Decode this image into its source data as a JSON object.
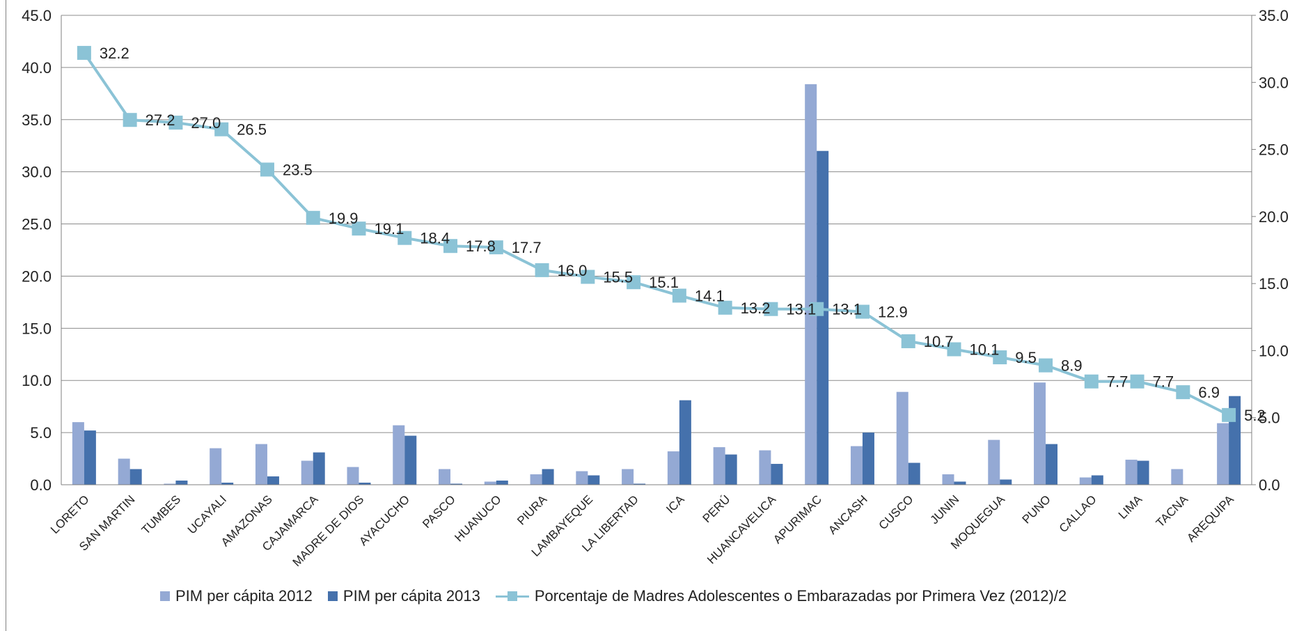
{
  "colors": {
    "bar2012": "#94A9D4",
    "bar2013": "#4571AC",
    "line": "#8BC3D6",
    "grid": "#8c8c8c",
    "axis": "#808080",
    "text": "#222222"
  },
  "chart_data": {
    "type": "bar",
    "categories": [
      "LORETO",
      "SAN MARTIN",
      "TUMBES",
      "UCAYALI",
      "AMAZONAS",
      "CAJAMARCA",
      "MADRE DE DIOS",
      "AYACUCHO",
      "PASCO",
      "HUANUCO",
      "PIURA",
      "LAMBAYEQUE",
      "LA LIBERTAD",
      "ICA",
      "PERÚ",
      "HUANCAVELICA",
      "APURIMAC",
      "ANCASH",
      "CUSCO",
      "JUNIN",
      "MOQUEGUA",
      "PUNO",
      "CALLAO",
      "LIMA",
      "TACNA",
      "AREQUIPA"
    ],
    "series": [
      {
        "name": "PIM per cápita 2012",
        "type": "bar",
        "axis": "left",
        "values": [
          6.0,
          2.5,
          0.1,
          3.5,
          3.9,
          2.3,
          1.7,
          5.7,
          1.5,
          0.3,
          1.0,
          1.3,
          1.5,
          3.2,
          3.6,
          3.3,
          38.4,
          3.7,
          8.9,
          1.0,
          4.3,
          9.8,
          0.7,
          2.4,
          1.5,
          5.9
        ]
      },
      {
        "name": "PIM per cápita 2013",
        "type": "bar",
        "axis": "left",
        "values": [
          5.2,
          1.5,
          0.4,
          0.2,
          0.8,
          3.1,
          0.2,
          4.7,
          0.1,
          0.4,
          1.5,
          0.9,
          0.1,
          8.1,
          2.9,
          2.0,
          32.0,
          5.0,
          2.1,
          0.3,
          0.5,
          3.9,
          0.9,
          2.3,
          0.0,
          8.5
        ]
      },
      {
        "name": "Porcentaje de Madres Adolescentes o Embarazadas por Primera Vez  (2012)/2",
        "type": "line",
        "axis": "right",
        "values": [
          32.2,
          27.2,
          27.0,
          26.5,
          23.5,
          19.9,
          19.1,
          18.4,
          17.8,
          17.7,
          16.0,
          15.5,
          15.1,
          14.1,
          13.2,
          13.1,
          13.1,
          12.9,
          10.7,
          10.1,
          9.5,
          8.9,
          7.7,
          7.7,
          6.9,
          5.2
        ]
      }
    ],
    "line_labels": [
      "32.2",
      "27.2",
      "27.0",
      "26.5",
      "23.5",
      "19.9",
      "19.1",
      "18.4",
      "17.8",
      "17.7",
      "16.0",
      "15.5",
      "15.1",
      "14.1",
      "13.2",
      "13.1",
      "13.1",
      "12.9",
      "10.7",
      "10.1",
      "9.5",
      "8.9",
      "7.7",
      "7.7",
      "6.9",
      "5.2"
    ],
    "y_left": {
      "min": 0,
      "max": 45,
      "step": 5,
      "tick_labels": [
        "0.0",
        "5.0",
        "10.0",
        "15.0",
        "20.0",
        "25.0",
        "30.0",
        "35.0",
        "40.0",
        "45.0"
      ]
    },
    "y_right": {
      "min": 0,
      "max": 35,
      "step": 5,
      "tick_labels": [
        "0.0",
        "5.0",
        "10.0",
        "15.0",
        "20.0",
        "25.0",
        "30.0",
        "35.0"
      ]
    },
    "grid": true,
    "legend_position": "bottom"
  }
}
